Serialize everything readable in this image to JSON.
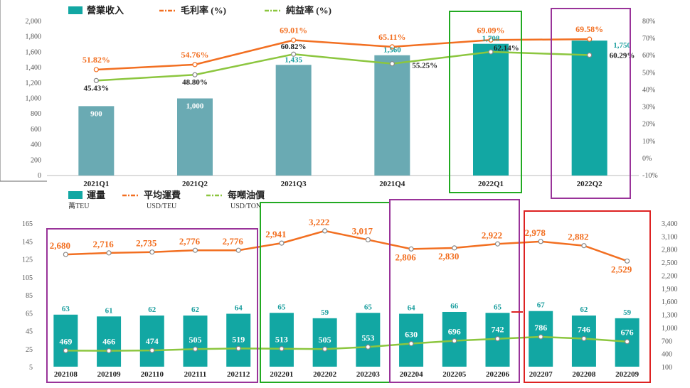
{
  "chart_data": [
    {
      "type": "bar",
      "legend": {
        "bar": "營業收入",
        "line1": "毛利率 (%)",
        "line2": "純益率 (%)"
      },
      "categories": [
        "2021Q1",
        "2021Q2",
        "2021Q3",
        "2021Q4",
        "2022Q1",
        "2022Q2"
      ],
      "series": [
        {
          "name": "營業收入",
          "values": [
            900,
            1000,
            1435,
            1560,
            1708,
            1750
          ],
          "labels": [
            "900",
            "1,000",
            "1,435",
            "1,560",
            "1,708",
            "1,750"
          ]
        },
        {
          "name": "毛利率 (%)",
          "values": [
            51.82,
            54.76,
            69.01,
            65.11,
            69.09,
            69.58
          ],
          "labels": [
            "51.82%",
            "54.76%",
            "69.01%",
            "65.11%",
            "69.09%",
            "69.58%"
          ]
        },
        {
          "name": "純益率 (%)",
          "values": [
            45.43,
            48.8,
            60.82,
            55.25,
            62.14,
            60.29
          ],
          "labels": [
            "45.43%",
            "48.80%",
            "60.82%",
            "55.25%",
            "62.14%",
            "60.29%"
          ]
        }
      ],
      "ylim": [
        0,
        2000
      ],
      "yticks": [
        "0",
        "200",
        "400",
        "600",
        "800",
        "1,000",
        "1,200",
        "1,400",
        "1,600",
        "1,800",
        "2,000"
      ],
      "y2lim": [
        -10,
        80
      ],
      "y2ticks": [
        "-10%",
        "0%",
        "10%",
        "20%",
        "30%",
        "40%",
        "50%",
        "60%",
        "70%",
        "80%"
      ],
      "colors": {
        "bar_old": "#6aaab3",
        "bar_new": "#12a7a3",
        "gross": "#f26f21",
        "net": "#8cc63f",
        "box_q1": "#22aa22",
        "box_q2": "#993399"
      }
    },
    {
      "type": "bar",
      "legend": {
        "bar": "運量",
        "line1": "平均運費",
        "line2": "每噸油價"
      },
      "units": {
        "bar": "萬TEU",
        "line1": "USD/TEU",
        "line2": "USD/TON"
      },
      "categories": [
        "202108",
        "202109",
        "202110",
        "202111",
        "202112",
        "202201",
        "202202",
        "202203",
        "202204",
        "202205",
        "202206",
        "202207",
        "202208",
        "202209"
      ],
      "series": [
        {
          "name": "運量",
          "values": [
            63,
            61,
            62,
            62,
            64,
            65,
            59,
            65,
            64,
            66,
            65,
            67,
            62,
            59
          ]
        },
        {
          "name": "平均運費",
          "values": [
            2680,
            2716,
            2735,
            2776,
            2776,
            2941,
            3222,
            3017,
            2806,
            2830,
            2922,
            2978,
            2882,
            2529
          ],
          "labels": [
            "2,680",
            "2,716",
            "2,735",
            "2,776",
            "2,776",
            "2,941",
            "3,222",
            "3,017",
            "2,806",
            "2,830",
            "2,922",
            "2,978",
            "2,882",
            "2,529"
          ]
        },
        {
          "name": "每噸油價",
          "values": [
            469,
            466,
            474,
            505,
            519,
            513,
            505,
            553,
            630,
            696,
            742,
            786,
            746,
            676
          ]
        }
      ],
      "ylim": [
        5,
        165
      ],
      "yticks": [
        "5",
        "25",
        "45",
        "65",
        "85",
        "105",
        "125",
        "145",
        "165"
      ],
      "y2lim": [
        100,
        3400
      ],
      "y2ticks": [
        "100",
        "400",
        "700",
        "1,000",
        "1,300",
        "1,600",
        "1,900",
        "2,200",
        "2,500",
        "2,800",
        "3,100",
        "3,400"
      ],
      "colors": {
        "bar": "#12a7a3",
        "freight": "#f26f21",
        "oil": "#8cc63f",
        "box_2021": "#993399",
        "box_q1": "#22aa22",
        "box_q2": "#993399",
        "box_q3": "#dd2222"
      }
    }
  ]
}
